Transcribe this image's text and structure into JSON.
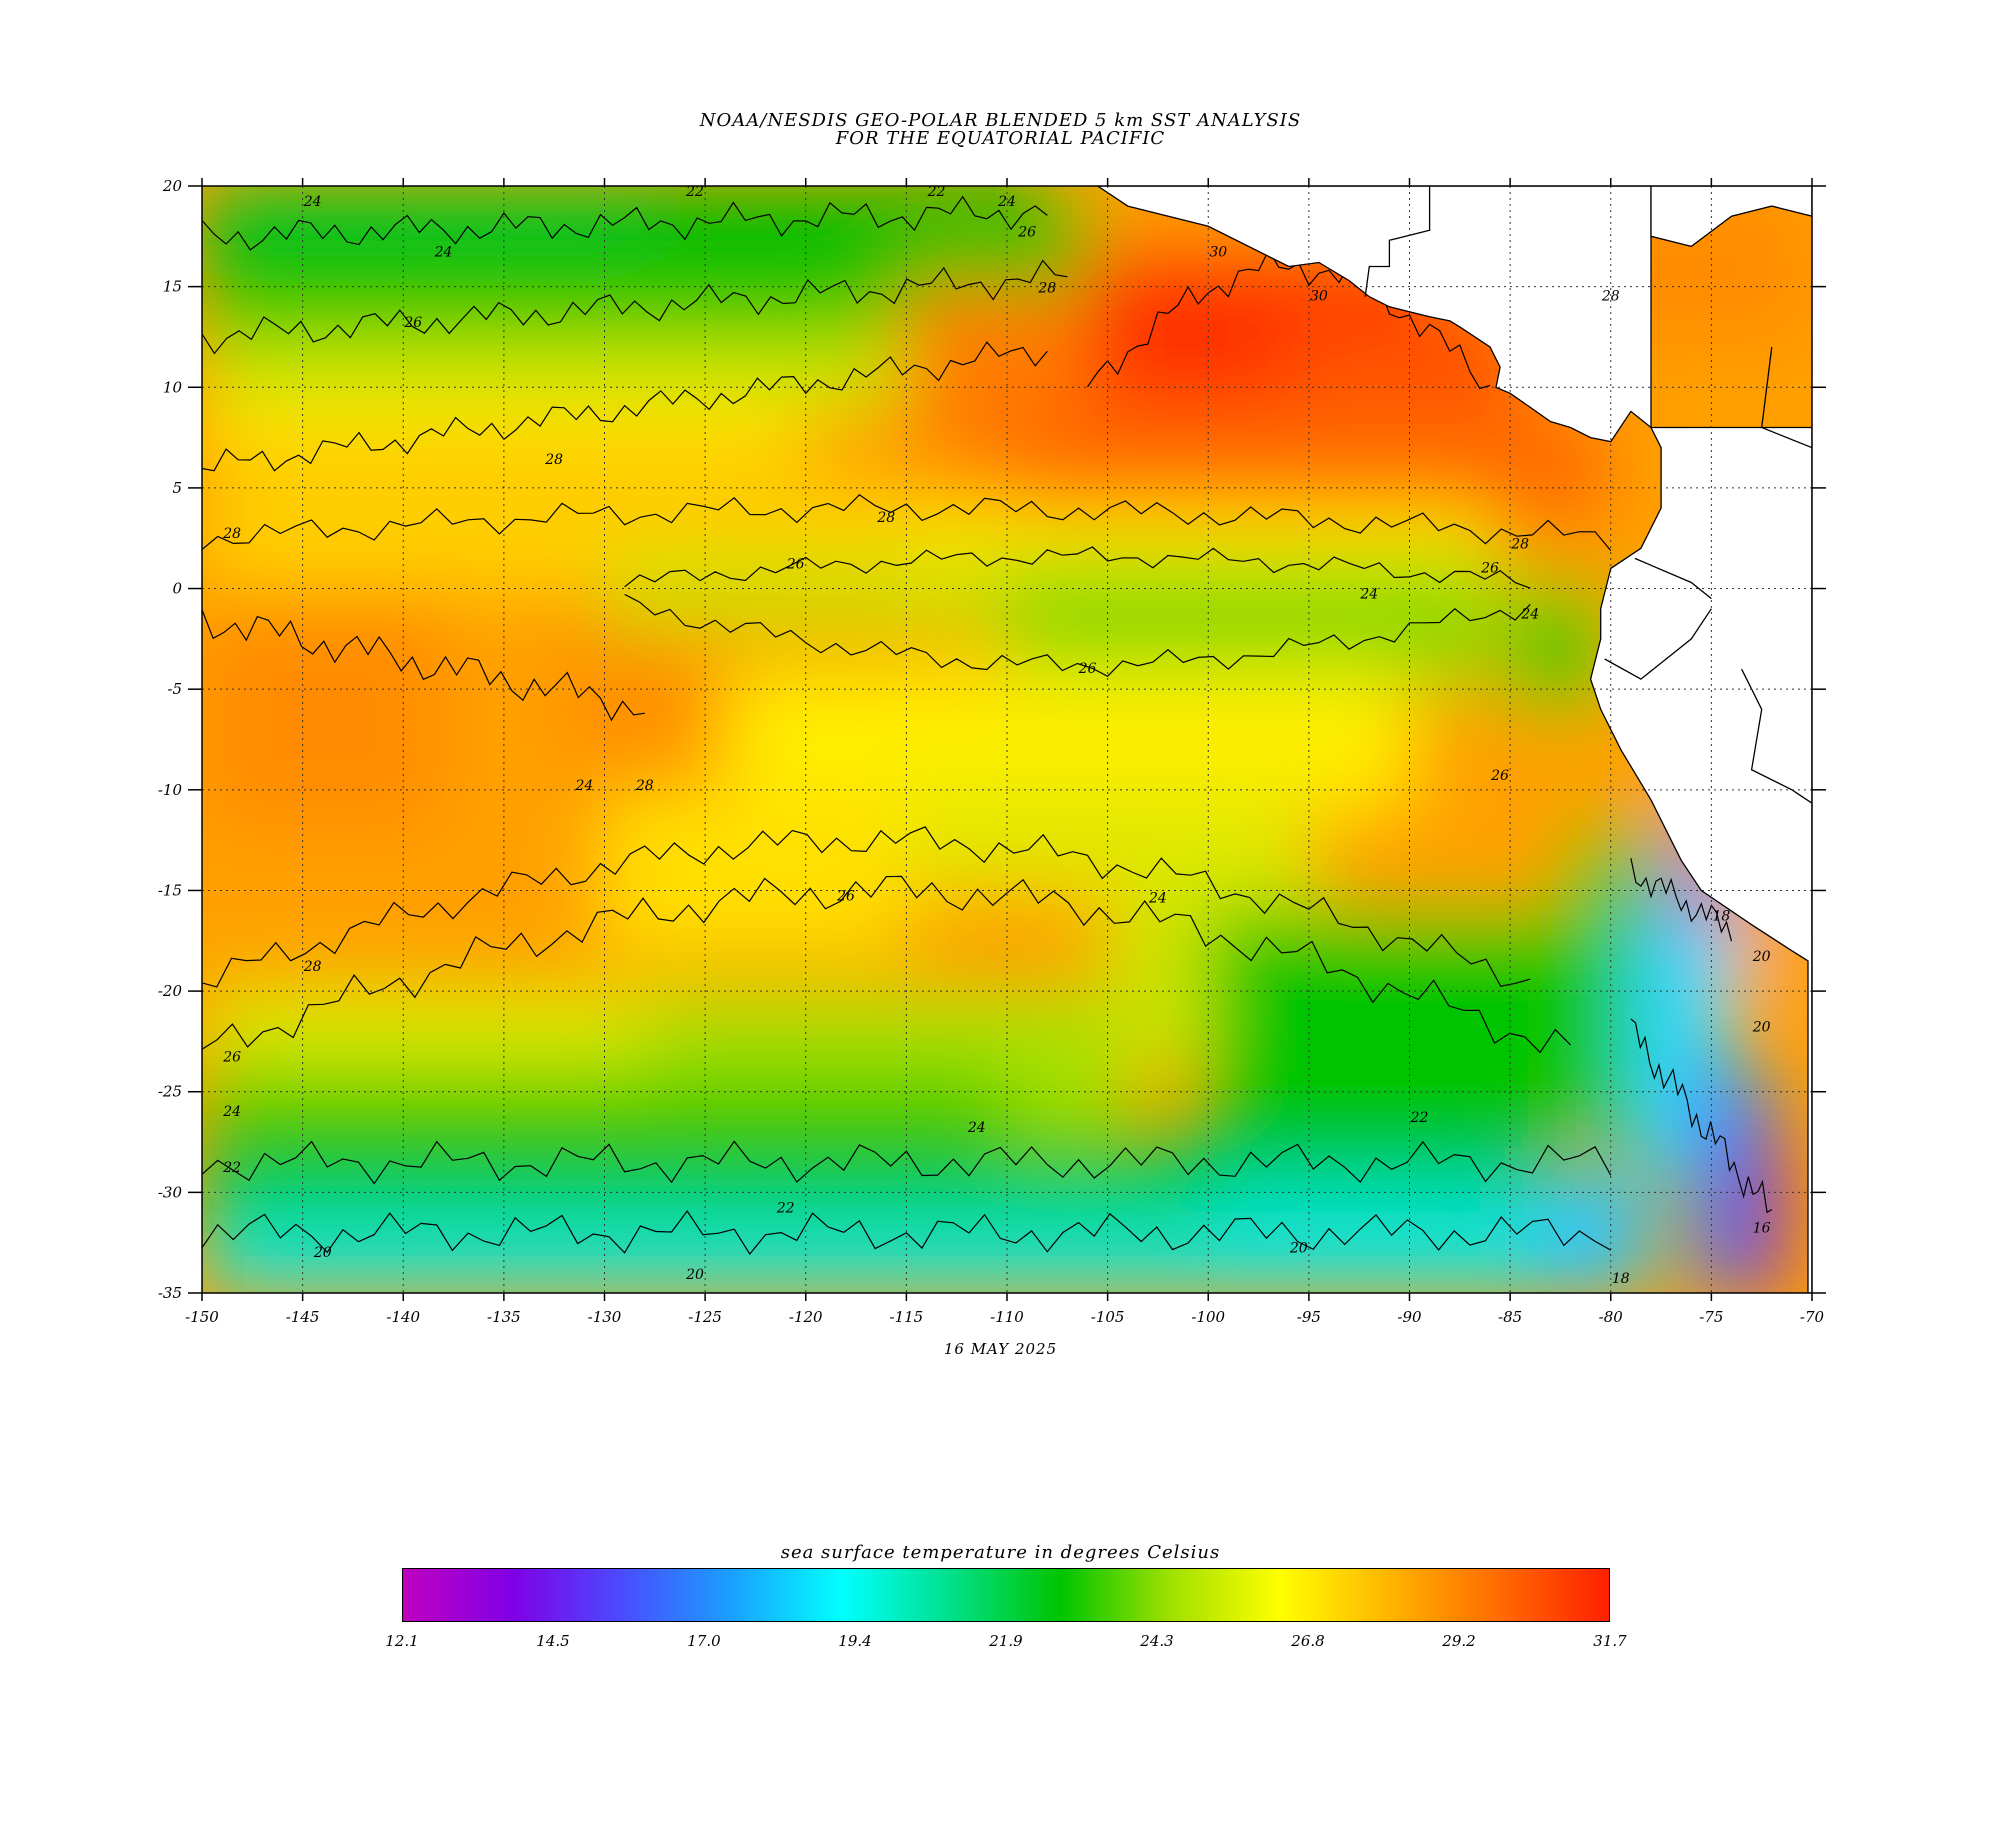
{
  "title": {
    "line1": "NOAA/NESDIS GEO-POLAR BLENDED 5 km SST ANALYSIS",
    "line2": "FOR THE EQUATORIAL PACIFIC"
  },
  "date": "16 MAY 2025",
  "map": {
    "lon_range": [
      -150,
      -70
    ],
    "lat_range": [
      -35,
      20
    ],
    "lon_ticks": [
      "-150",
      "-145",
      "-140",
      "-135",
      "-130",
      "-125",
      "-120",
      "-115",
      "-110",
      "-105",
      "-100",
      "-95",
      "-90",
      "-85",
      "-80",
      "-75",
      "-70"
    ],
    "lat_ticks": [
      "20",
      "15",
      "10",
      "5",
      "0",
      "-5",
      "-10",
      "-15",
      "-20",
      "-25",
      "-30",
      "-35"
    ],
    "gridlines": "dotted",
    "land_color": "#ffffff",
    "contour_interval_c": 2,
    "contour_labels": [
      {
        "text": "24",
        "lon": -144.5,
        "lat": 19
      },
      {
        "text": "22",
        "lon": -125.5,
        "lat": 19.5
      },
      {
        "text": "22",
        "lon": -113.5,
        "lat": 19.5
      },
      {
        "text": "24",
        "lon": -110,
        "lat": 19
      },
      {
        "text": "26",
        "lon": -109,
        "lat": 17.5
      },
      {
        "text": "24",
        "lon": -138,
        "lat": 16.5
      },
      {
        "text": "28",
        "lon": -108,
        "lat": 14.7
      },
      {
        "text": "30",
        "lon": -99.5,
        "lat": 16.5
      },
      {
        "text": "30",
        "lon": -94.5,
        "lat": 14.3
      },
      {
        "text": "26",
        "lon": -139.5,
        "lat": 13
      },
      {
        "text": "28",
        "lon": -132.5,
        "lat": 6.2
      },
      {
        "text": "28",
        "lon": -116,
        "lat": 3.3
      },
      {
        "text": "28",
        "lon": -80,
        "lat": 14.3
      },
      {
        "text": "28",
        "lon": -148.5,
        "lat": 2.5
      },
      {
        "text": "26",
        "lon": -120.5,
        "lat": 1
      },
      {
        "text": "28",
        "lon": -84.5,
        "lat": 2
      },
      {
        "text": "26",
        "lon": -86,
        "lat": 0.8
      },
      {
        "text": "24",
        "lon": -92,
        "lat": -0.5
      },
      {
        "text": "24",
        "lon": -84,
        "lat": -1.5
      },
      {
        "text": "26",
        "lon": -106,
        "lat": -4.2
      },
      {
        "text": "24",
        "lon": -131,
        "lat": -10
      },
      {
        "text": "28",
        "lon": -128,
        "lat": -10
      },
      {
        "text": "26",
        "lon": -85.5,
        "lat": -9.5
      },
      {
        "text": "26",
        "lon": -118,
        "lat": -15.5
      },
      {
        "text": "24",
        "lon": -102.5,
        "lat": -15.6
      },
      {
        "text": "28",
        "lon": -144.5,
        "lat": -19
      },
      {
        "text": "26",
        "lon": -148.5,
        "lat": -23.5
      },
      {
        "text": "24",
        "lon": -148.5,
        "lat": -26.2
      },
      {
        "text": "22",
        "lon": -148.5,
        "lat": -29
      },
      {
        "text": "24",
        "lon": -111.5,
        "lat": -27
      },
      {
        "text": "22",
        "lon": -89.5,
        "lat": -26.5
      },
      {
        "text": "22",
        "lon": -121,
        "lat": -31
      },
      {
        "text": "20",
        "lon": -144,
        "lat": -33.2
      },
      {
        "text": "20",
        "lon": -95.5,
        "lat": -33
      },
      {
        "text": "20",
        "lon": -125.5,
        "lat": -34.3
      },
      {
        "text": "18",
        "lon": -79.5,
        "lat": -34.5
      },
      {
        "text": "18",
        "lon": -74.5,
        "lat": -16.5
      },
      {
        "text": "20",
        "lon": -72.5,
        "lat": -18.5
      },
      {
        "text": "20",
        "lon": -72.5,
        "lat": -22
      },
      {
        "text": "16",
        "lon": -72.5,
        "lat": -32
      }
    ]
  },
  "colorbar": {
    "title": "sea surface temperature in degrees Celsius",
    "min": 12.1,
    "max": 31.7,
    "tick_labels": [
      "12.1",
      "14.5",
      "17.0",
      "19.4",
      "21.9",
      "24.3",
      "26.8",
      "29.2",
      "31.7"
    ],
    "colors": [
      "#c000c0",
      "#8000e6",
      "#4a4cff",
      "#1aa0ff",
      "#00ffff",
      "#00e08a",
      "#00c400",
      "#a0e000",
      "#ffff00",
      "#ffb400",
      "#ff6a00",
      "#ff2000"
    ]
  }
}
